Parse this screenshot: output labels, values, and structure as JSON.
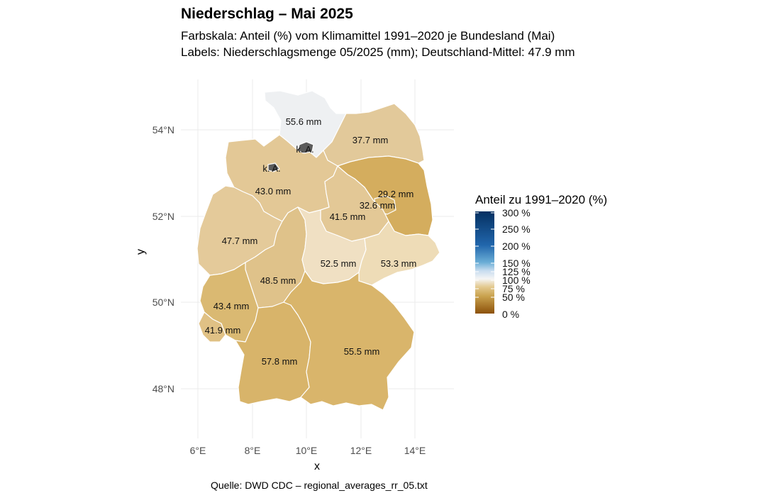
{
  "title": "Niederschlag – Mai 2025",
  "subtitle_1": "Farbskala: Anteil (%) vom Klimamittel 1991–2020 je Bundesland (Mai)",
  "subtitle_2": "Labels: Niederschlagsmenge 05/2025 (mm); Deutschland-Mittel: 47.9 mm",
  "caption": "Quelle: DWD CDC – regional_averages_rr_05.txt",
  "axes": {
    "xlabel": "x",
    "ylabel": "y",
    "x_ticks": [
      "6°E",
      "8°E",
      "10°E",
      "12°E",
      "14°E"
    ],
    "y_ticks": [
      "48°N",
      "50°N",
      "52°N",
      "54°N"
    ],
    "grid": "on"
  },
  "legend": {
    "title": "Anteil zu 1991–2020 (%)",
    "placement": "right",
    "labels": [
      "300 %",
      "250 %",
      "200 %",
      "150 %",
      "125 %",
      "100 %",
      "75 %",
      "50 %",
      "0 %"
    ],
    "colors": {
      "0": "#8c510a",
      "50": "#c9a24e",
      "75": "#e3c98f",
      "100": "#f5f5f5",
      "125": "#c7dcef",
      "150": "#6baed6",
      "200": "#2166ac",
      "300": "#053061"
    }
  },
  "chart_data": {
    "type": "choropleth",
    "region_labels": [
      {
        "id": "schleswig-holstein",
        "text": "55.6 mm",
        "color": "#eef0f2"
      },
      {
        "id": "mecklenburg-vorpommern",
        "text": "37.7 mm",
        "color": "#e2c99a"
      },
      {
        "id": "hamburg",
        "text": "k. A.",
        "color": "#5b5b5b"
      },
      {
        "id": "bremen",
        "text": "k. A.",
        "color": "#5b5b5b"
      },
      {
        "id": "niedersachsen",
        "text": "43.0 mm",
        "color": "#e3c896"
      },
      {
        "id": "brandenburg",
        "text": "29.2 mm",
        "color": "#d4ad5e"
      },
      {
        "id": "berlin",
        "text": "32.6 mm",
        "color": "#d8b56d"
      },
      {
        "id": "sachsen-anhalt",
        "text": "41.5 mm",
        "color": "#e3c896"
      },
      {
        "id": "nordrhein-westfalen",
        "text": "47.7 mm",
        "color": "#e4ca9a"
      },
      {
        "id": "hessen",
        "text": "48.5 mm",
        "color": "#dfc28a"
      },
      {
        "id": "thueringen",
        "text": "52.5 mm",
        "color": "#f0e0c3"
      },
      {
        "id": "sachsen",
        "text": "53.3 mm",
        "color": "#eedcb7"
      },
      {
        "id": "rheinland-pfalz",
        "text": "43.4 mm",
        "color": "#dab972"
      },
      {
        "id": "saarland",
        "text": "41.9 mm",
        "color": "#e0c185"
      },
      {
        "id": "baden-wuerttemberg",
        "text": "57.8 mm",
        "color": "#d8b46a"
      },
      {
        "id": "bayern",
        "text": "55.5 mm",
        "color": "#d9b56b"
      }
    ]
  }
}
